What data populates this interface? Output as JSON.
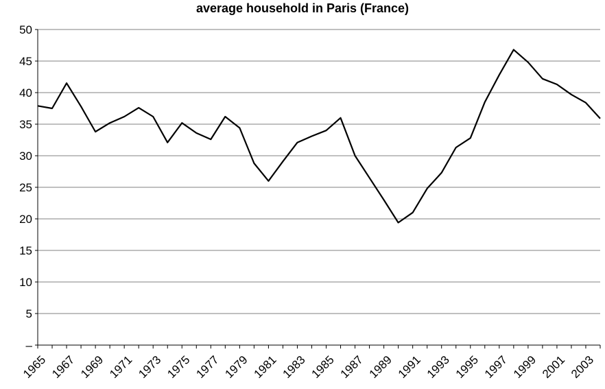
{
  "chart_data": {
    "type": "line",
    "title": "average household in Paris (France)",
    "xlabel": "",
    "ylabel": "",
    "ylim": [
      0,
      50
    ],
    "xlim": [
      1965,
      2004
    ],
    "grid": true,
    "y_ticks": [
      "–",
      "5",
      "10",
      "15",
      "20",
      "25",
      "30",
      "35",
      "40",
      "45",
      "50"
    ],
    "x_ticks": [
      "1965",
      "1967",
      "1969",
      "1971",
      "1973",
      "1975",
      "1977",
      "1979",
      "1981",
      "1983",
      "1985",
      "1987",
      "1989",
      "1991",
      "1993",
      "1995",
      "1997",
      "1999",
      "2001",
      "2003"
    ],
    "series": [
      {
        "x": [
          1965,
          1966,
          1967,
          1968,
          1969,
          1970,
          1971,
          1972,
          1973,
          1974,
          1975,
          1976,
          1977,
          1978,
          1979,
          1980,
          1981,
          1982,
          1983,
          1984,
          1985,
          1986,
          1987,
          1988,
          1989,
          1990,
          1991,
          1992,
          1993,
          1994,
          1995,
          1996,
          1997,
          1998,
          1999,
          2000,
          2001,
          2002,
          2003,
          2004
        ],
        "y": [
          37.9,
          37.5,
          41.5,
          37.8,
          33.8,
          35.2,
          36.2,
          37.6,
          36.2,
          32.1,
          35.2,
          33.6,
          32.6,
          36.2,
          34.4,
          28.8,
          26.0,
          29.1,
          32.1,
          33.1,
          34.0,
          36.0,
          30.0,
          26.5,
          23.0,
          19.4,
          21.0,
          24.8,
          27.3,
          31.3,
          32.8,
          38.5,
          42.8,
          46.8,
          44.8,
          42.2,
          41.3,
          39.7,
          38.4,
          35.9
        ]
      }
    ],
    "colors": {
      "line": "#000000",
      "grid": "#808080",
      "axis": "#000000"
    }
  }
}
